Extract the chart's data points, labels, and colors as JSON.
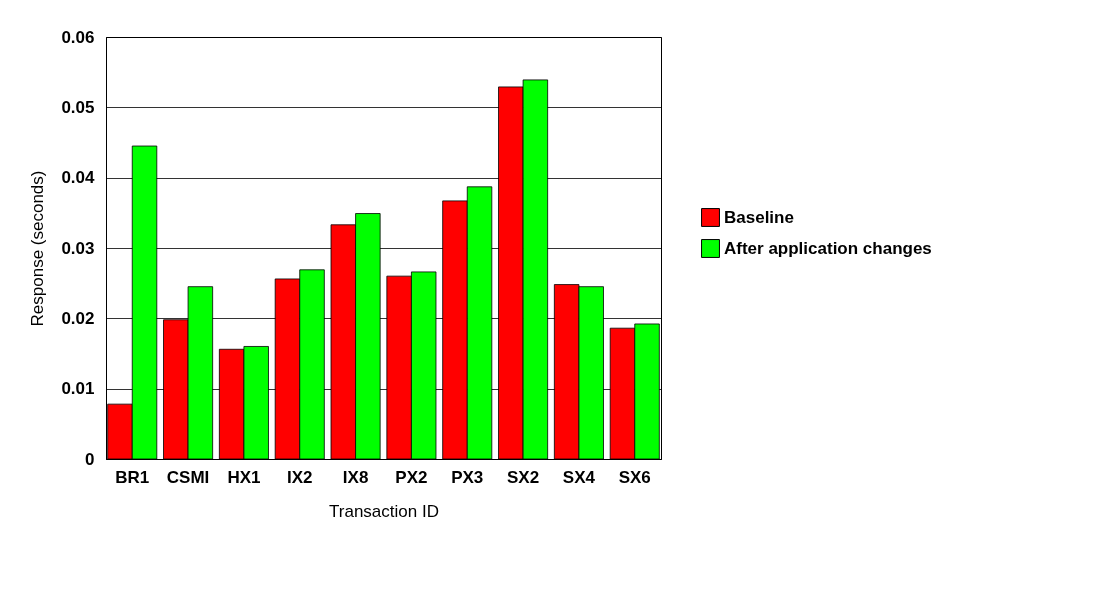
{
  "chart_data": {
    "type": "bar",
    "xlabel": "Transaction ID",
    "ylabel": "Response (seconds)",
    "categories": [
      "BR1",
      "CSMI",
      "HX1",
      "IX2",
      "IX8",
      "PX2",
      "PX3",
      "SX2",
      "SX4",
      "SX6"
    ],
    "series": [
      {
        "name": "Baseline",
        "color": "#ff0000",
        "values": [
          0.0078,
          0.0198,
          0.0156,
          0.0256,
          0.0333,
          0.026,
          0.0367,
          0.0529,
          0.0248,
          0.0186
        ]
      },
      {
        "name": "After application changes",
        "color": "#00ff00",
        "values": [
          0.0445,
          0.0245,
          0.016,
          0.0269,
          0.0349,
          0.0266,
          0.0387,
          0.0539,
          0.0245,
          0.0192
        ]
      }
    ],
    "ylim": [
      0,
      0.06
    ],
    "yticks": [
      0,
      0.01,
      0.02,
      0.03,
      0.04,
      0.05,
      0.06
    ],
    "grid": "y",
    "legend": "right"
  }
}
